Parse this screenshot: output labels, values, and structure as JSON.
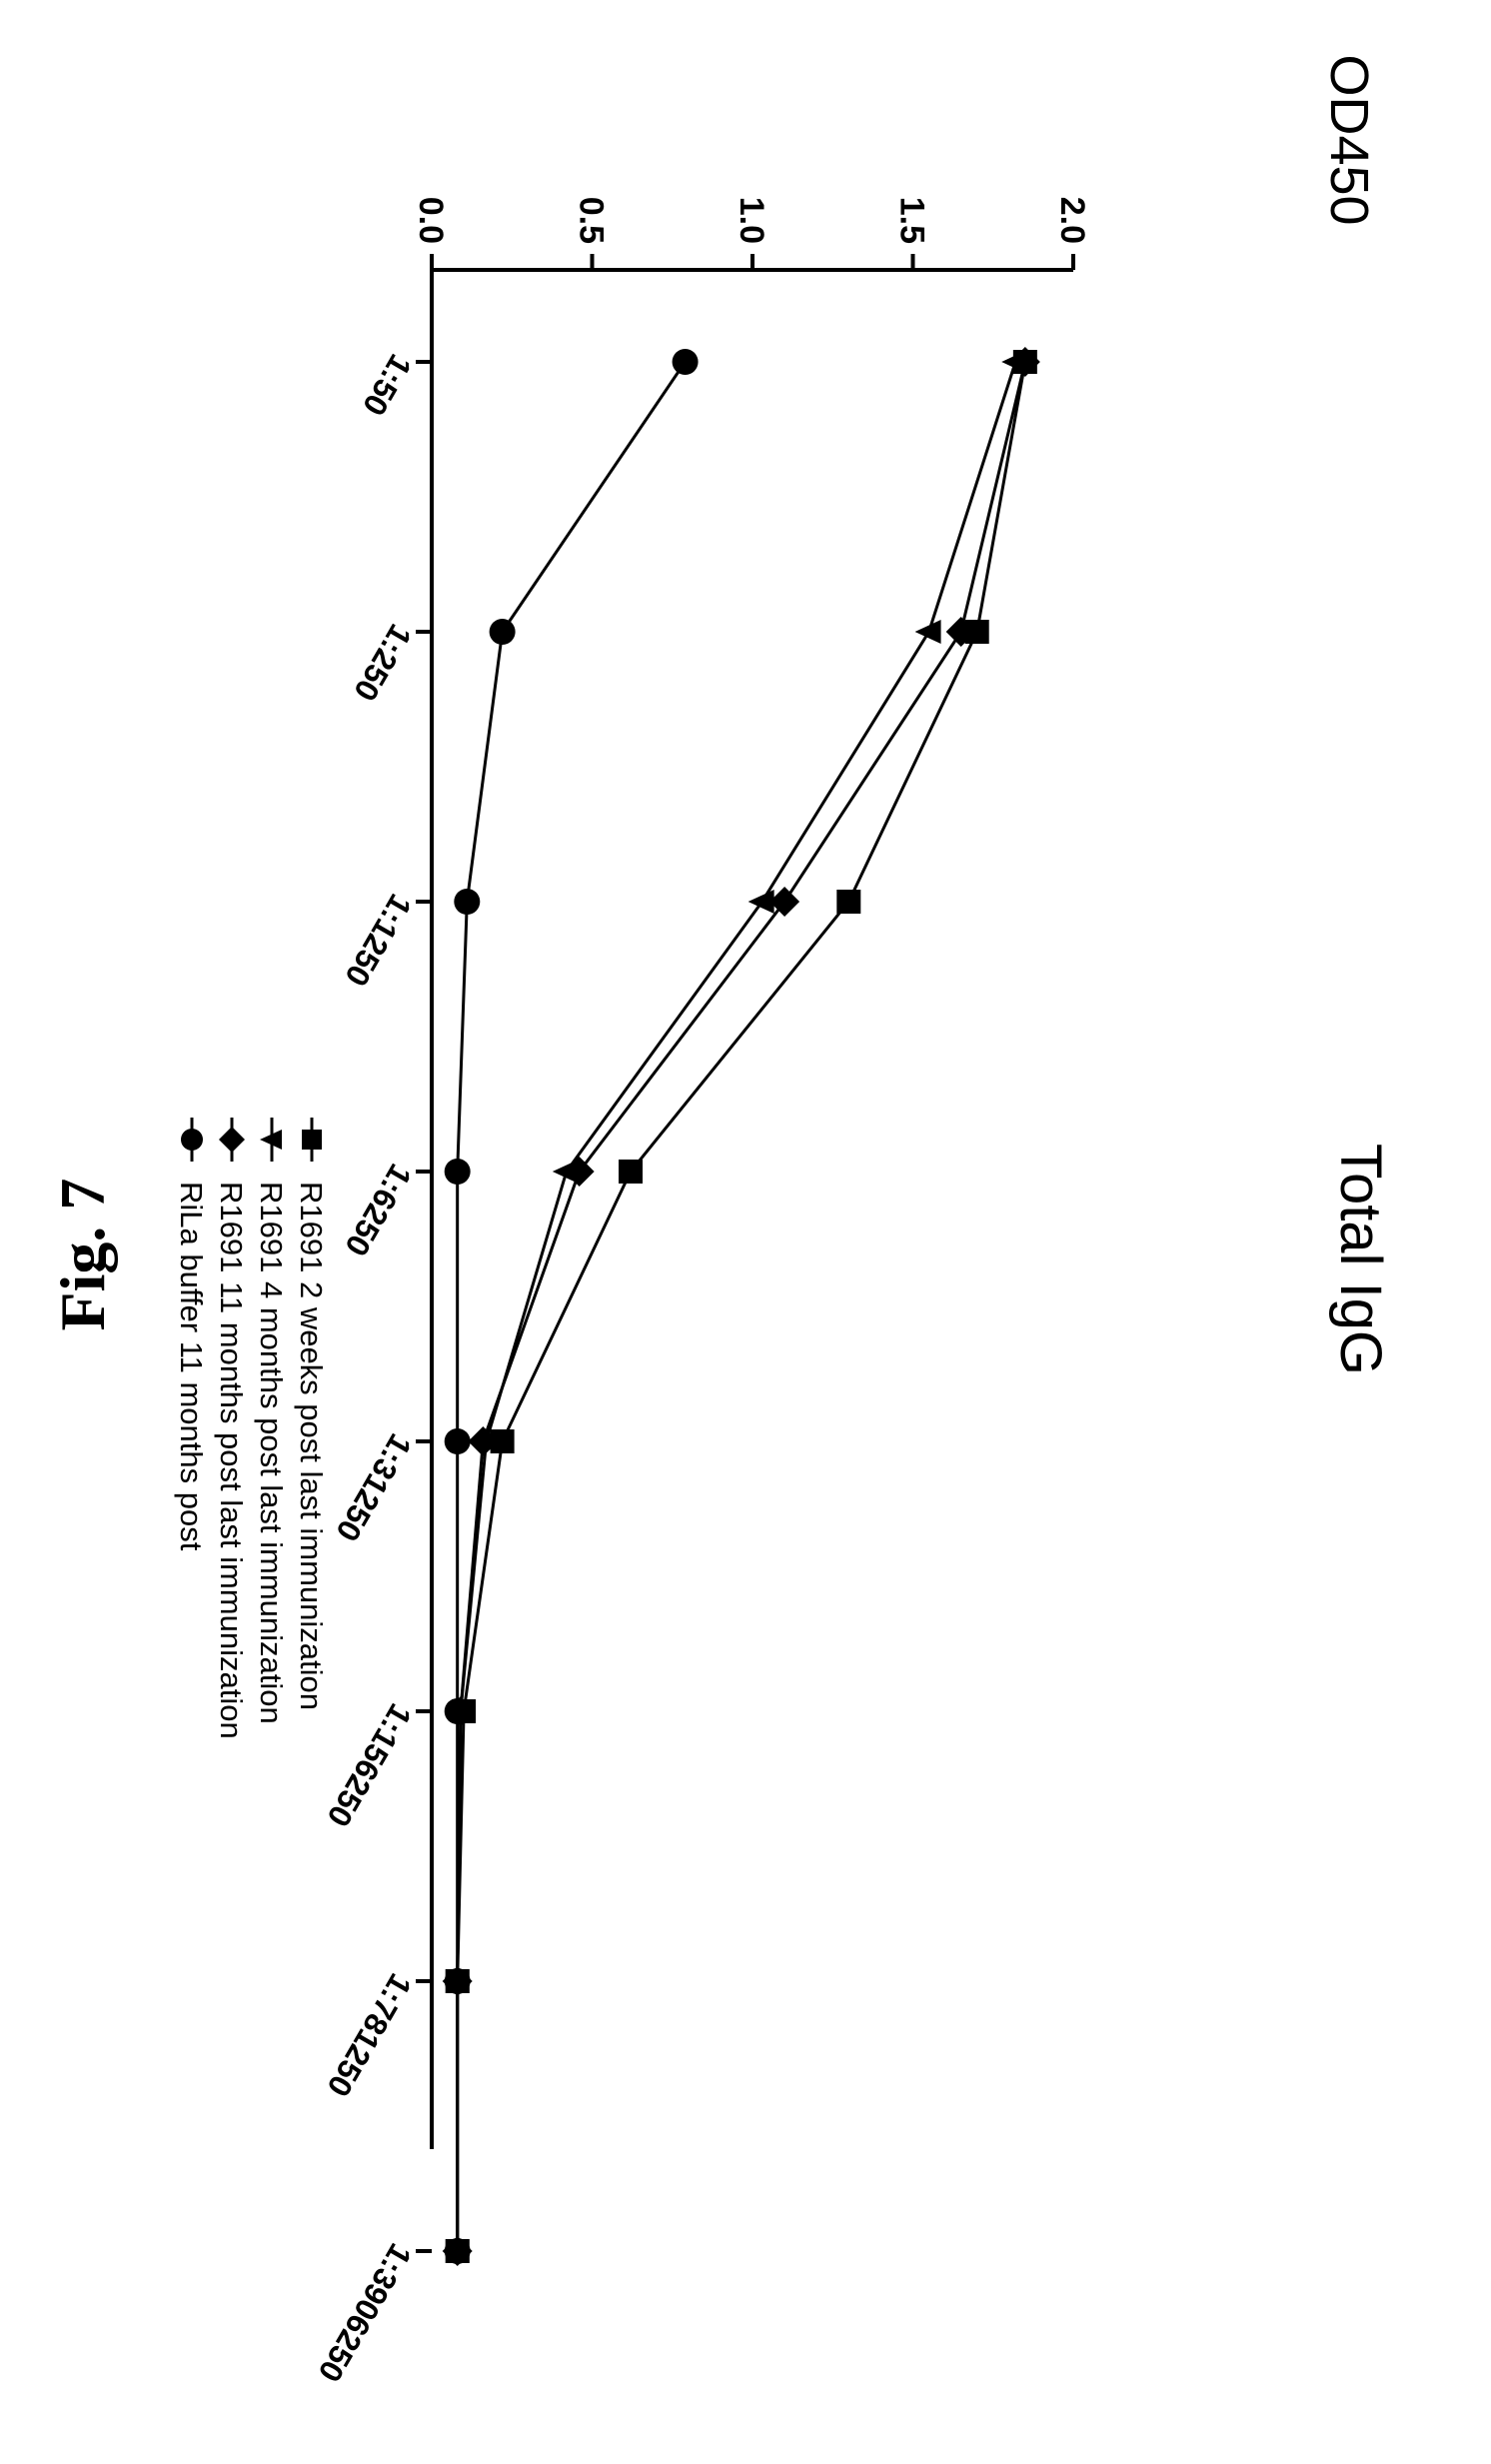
{
  "chart_data": {
    "type": "line",
    "title": "Total IgG",
    "ylabel": "OD450",
    "xlabel": "",
    "ylim": [
      0,
      2.0
    ],
    "yticks": [
      "0.0",
      "0.5",
      "1.0",
      "1.5",
      "2.0"
    ],
    "categories": [
      "1:50",
      "1:250",
      "1:1250",
      "1:6250",
      "1:31250",
      "1:156250",
      "1:781250",
      "1:3906250"
    ],
    "grid": false,
    "legend_position": "top-right",
    "series": [
      {
        "name": "R1691 2 weeks post last immunization",
        "marker": "square",
        "values": [
          1.85,
          1.7,
          1.3,
          0.62,
          0.22,
          0.1,
          0.08,
          0.08
        ]
      },
      {
        "name": "R1691 4 months post last immunization",
        "marker": "triangle",
        "values": [
          1.82,
          1.55,
          1.03,
          0.42,
          0.17,
          0.09,
          0.08,
          0.08
        ]
      },
      {
        "name": "R1691 11 months post last immunization",
        "marker": "diamond",
        "values": [
          1.85,
          1.65,
          1.1,
          0.46,
          0.16,
          0.09,
          0.08,
          0.08
        ]
      },
      {
        "name": "RiLa buffer 11 months post",
        "marker": "circle",
        "values": [
          0.79,
          0.22,
          0.11,
          0.08,
          0.08,
          0.08,
          0.08,
          0.08
        ]
      }
    ],
    "caption": "Fig. 7"
  }
}
